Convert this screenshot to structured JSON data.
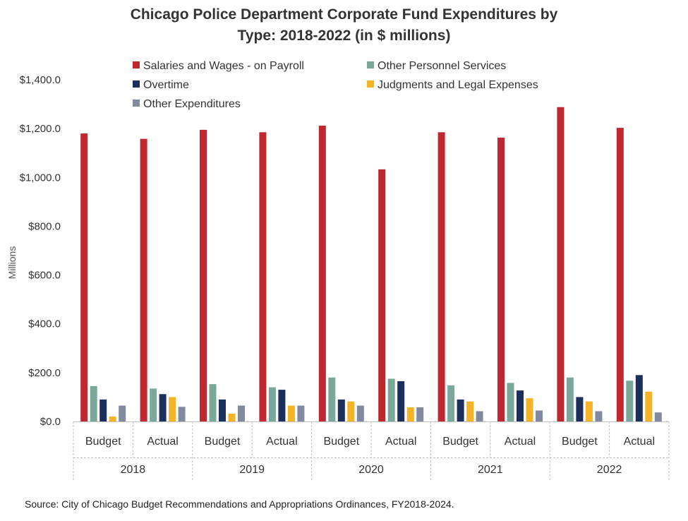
{
  "chart_data": {
    "type": "bar",
    "title": "Chicago Police Department Corporate Fund Expenditures by Type: 2018-2022 (in $ millions)",
    "title_lines": [
      "Chicago Police Department Corporate Fund Expenditures by",
      "Type: 2018-2022 (in $ millions)"
    ],
    "ylabel": "Millions",
    "xlabel": "",
    "ylim": [
      0,
      1400
    ],
    "yticks": [
      "$0.0",
      "$200.0",
      "$400.0",
      "$600.0",
      "$800.0",
      "$1,000.0",
      "$1,200.0",
      "$1,400.0"
    ],
    "grid": false,
    "legend_position": "top",
    "groups": [
      "2018",
      "2019",
      "2020",
      "2021",
      "2022"
    ],
    "categories": [
      "Budget",
      "Actual",
      "Budget",
      "Actual",
      "Budget",
      "Actual",
      "Budget",
      "Actual",
      "Budget",
      "Actual"
    ],
    "series": [
      {
        "name": "Salaries and Wages - on Payroll",
        "color": "#c0282f",
        "values": [
          1180,
          1158,
          1195,
          1185,
          1212,
          1033,
          1185,
          1163,
          1288,
          1203
        ]
      },
      {
        "name": "Other Personnel Services",
        "color": "#7aa99c",
        "values": [
          145,
          135,
          153,
          140,
          180,
          175,
          148,
          158,
          180,
          167
        ]
      },
      {
        "name": "Overtime",
        "color": "#1c2e5c",
        "values": [
          90,
          112,
          90,
          130,
          90,
          165,
          90,
          127,
          100,
          190
        ]
      },
      {
        "name": "Judgments and Legal Expenses",
        "color": "#f5b428",
        "values": [
          20,
          100,
          32,
          65,
          82,
          58,
          82,
          95,
          82,
          122
        ]
      },
      {
        "name": "Other Expenditures",
        "color": "#828a9f",
        "values": [
          65,
          60,
          65,
          65,
          65,
          58,
          42,
          45,
          42,
          37
        ]
      }
    ],
    "source": "Source: City of Chicago Budget Recommendations and Appropriations Ordinances, FY2018-2024."
  }
}
